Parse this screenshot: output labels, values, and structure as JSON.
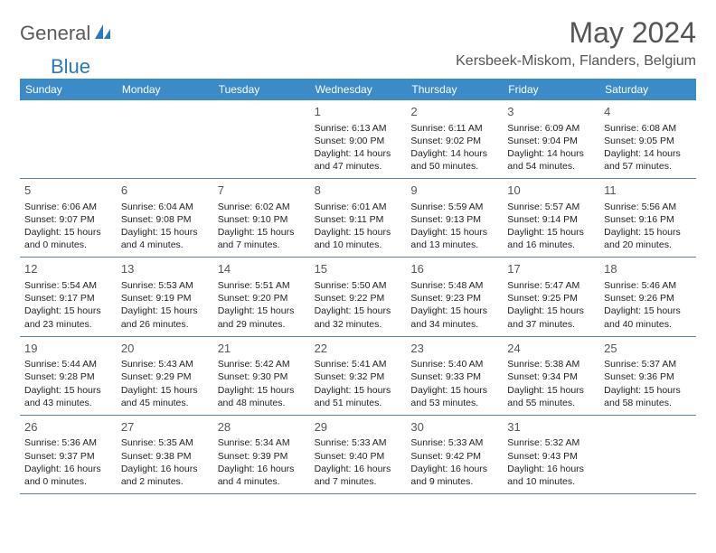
{
  "logo": {
    "text1": "General",
    "text2": "Blue"
  },
  "title": "May 2024",
  "location": "Kersbeek-Miskom, Flanders, Belgium",
  "colors": {
    "header_bg": "#3b8bc9",
    "header_text": "#ffffff",
    "border": "#5c7fa0",
    "logo_gray": "#5a5a5a",
    "logo_blue": "#2a78bd"
  },
  "weekdays": [
    "Sunday",
    "Monday",
    "Tuesday",
    "Wednesday",
    "Thursday",
    "Friday",
    "Saturday"
  ],
  "leading_blanks": 3,
  "days": [
    {
      "n": "1",
      "sunrise": "6:13 AM",
      "sunset": "9:00 PM",
      "daylight": "14 hours and 47 minutes."
    },
    {
      "n": "2",
      "sunrise": "6:11 AM",
      "sunset": "9:02 PM",
      "daylight": "14 hours and 50 minutes."
    },
    {
      "n": "3",
      "sunrise": "6:09 AM",
      "sunset": "9:04 PM",
      "daylight": "14 hours and 54 minutes."
    },
    {
      "n": "4",
      "sunrise": "6:08 AM",
      "sunset": "9:05 PM",
      "daylight": "14 hours and 57 minutes."
    },
    {
      "n": "5",
      "sunrise": "6:06 AM",
      "sunset": "9:07 PM",
      "daylight": "15 hours and 0 minutes."
    },
    {
      "n": "6",
      "sunrise": "6:04 AM",
      "sunset": "9:08 PM",
      "daylight": "15 hours and 4 minutes."
    },
    {
      "n": "7",
      "sunrise": "6:02 AM",
      "sunset": "9:10 PM",
      "daylight": "15 hours and 7 minutes."
    },
    {
      "n": "8",
      "sunrise": "6:01 AM",
      "sunset": "9:11 PM",
      "daylight": "15 hours and 10 minutes."
    },
    {
      "n": "9",
      "sunrise": "5:59 AM",
      "sunset": "9:13 PM",
      "daylight": "15 hours and 13 minutes."
    },
    {
      "n": "10",
      "sunrise": "5:57 AM",
      "sunset": "9:14 PM",
      "daylight": "15 hours and 16 minutes."
    },
    {
      "n": "11",
      "sunrise": "5:56 AM",
      "sunset": "9:16 PM",
      "daylight": "15 hours and 20 minutes."
    },
    {
      "n": "12",
      "sunrise": "5:54 AM",
      "sunset": "9:17 PM",
      "daylight": "15 hours and 23 minutes."
    },
    {
      "n": "13",
      "sunrise": "5:53 AM",
      "sunset": "9:19 PM",
      "daylight": "15 hours and 26 minutes."
    },
    {
      "n": "14",
      "sunrise": "5:51 AM",
      "sunset": "9:20 PM",
      "daylight": "15 hours and 29 minutes."
    },
    {
      "n": "15",
      "sunrise": "5:50 AM",
      "sunset": "9:22 PM",
      "daylight": "15 hours and 32 minutes."
    },
    {
      "n": "16",
      "sunrise": "5:48 AM",
      "sunset": "9:23 PM",
      "daylight": "15 hours and 34 minutes."
    },
    {
      "n": "17",
      "sunrise": "5:47 AM",
      "sunset": "9:25 PM",
      "daylight": "15 hours and 37 minutes."
    },
    {
      "n": "18",
      "sunrise": "5:46 AM",
      "sunset": "9:26 PM",
      "daylight": "15 hours and 40 minutes."
    },
    {
      "n": "19",
      "sunrise": "5:44 AM",
      "sunset": "9:28 PM",
      "daylight": "15 hours and 43 minutes."
    },
    {
      "n": "20",
      "sunrise": "5:43 AM",
      "sunset": "9:29 PM",
      "daylight": "15 hours and 45 minutes."
    },
    {
      "n": "21",
      "sunrise": "5:42 AM",
      "sunset": "9:30 PM",
      "daylight": "15 hours and 48 minutes."
    },
    {
      "n": "22",
      "sunrise": "5:41 AM",
      "sunset": "9:32 PM",
      "daylight": "15 hours and 51 minutes."
    },
    {
      "n": "23",
      "sunrise": "5:40 AM",
      "sunset": "9:33 PM",
      "daylight": "15 hours and 53 minutes."
    },
    {
      "n": "24",
      "sunrise": "5:38 AM",
      "sunset": "9:34 PM",
      "daylight": "15 hours and 55 minutes."
    },
    {
      "n": "25",
      "sunrise": "5:37 AM",
      "sunset": "9:36 PM",
      "daylight": "15 hours and 58 minutes."
    },
    {
      "n": "26",
      "sunrise": "5:36 AM",
      "sunset": "9:37 PM",
      "daylight": "16 hours and 0 minutes."
    },
    {
      "n": "27",
      "sunrise": "5:35 AM",
      "sunset": "9:38 PM",
      "daylight": "16 hours and 2 minutes."
    },
    {
      "n": "28",
      "sunrise": "5:34 AM",
      "sunset": "9:39 PM",
      "daylight": "16 hours and 4 minutes."
    },
    {
      "n": "29",
      "sunrise": "5:33 AM",
      "sunset": "9:40 PM",
      "daylight": "16 hours and 7 minutes."
    },
    {
      "n": "30",
      "sunrise": "5:33 AM",
      "sunset": "9:42 PM",
      "daylight": "16 hours and 9 minutes."
    },
    {
      "n": "31",
      "sunrise": "5:32 AM",
      "sunset": "9:43 PM",
      "daylight": "16 hours and 10 minutes."
    }
  ],
  "labels": {
    "sunrise": "Sunrise:",
    "sunset": "Sunset:",
    "daylight": "Daylight:"
  }
}
